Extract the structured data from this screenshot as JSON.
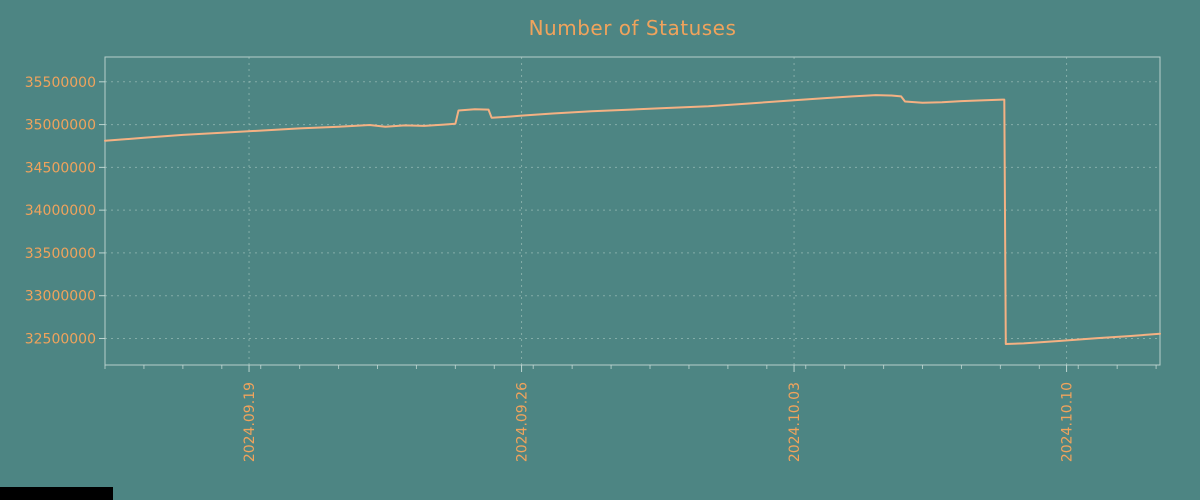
{
  "chart_data": {
    "type": "line",
    "title": "Number of Statuses",
    "xlabel": "",
    "ylabel": "",
    "grid": true,
    "legend": "none",
    "xlim": [
      0,
      27.1
    ],
    "ylim": [
      32190000,
      35790000
    ],
    "x_unit": "days (axis labeled by date ticks)",
    "x_ticks": [
      {
        "label": "2024.09.19",
        "pos": 3.7
      },
      {
        "label": "2024.09.26",
        "pos": 10.7
      },
      {
        "label": "2024.10.03",
        "pos": 17.7
      },
      {
        "label": "2024.10.10",
        "pos": 24.7
      }
    ],
    "y_ticks": [
      {
        "label": "32500000",
        "value": 32500000
      },
      {
        "label": "33000000",
        "value": 33000000
      },
      {
        "label": "33500000",
        "value": 33500000
      },
      {
        "label": "34000000",
        "value": 34000000
      },
      {
        "label": "34500000",
        "value": 34500000
      },
      {
        "label": "35000000",
        "value": 35000000
      },
      {
        "label": "35500000",
        "value": 35500000
      }
    ],
    "x_minor_tick_step": 1,
    "series": [
      {
        "name": "statuses",
        "points": [
          [
            0,
            34810000
          ],
          [
            1,
            34845000
          ],
          [
            2,
            34880000
          ],
          [
            3,
            34905000
          ],
          [
            4,
            34930000
          ],
          [
            5,
            34955000
          ],
          [
            6,
            34975000
          ],
          [
            6.8,
            34995000
          ],
          [
            7.2,
            34975000
          ],
          [
            7.7,
            34990000
          ],
          [
            8.2,
            34985000
          ],
          [
            8.7,
            35000000
          ],
          [
            9.0,
            35010000
          ],
          [
            9.08,
            35165000
          ],
          [
            9.5,
            35180000
          ],
          [
            9.85,
            35175000
          ],
          [
            9.93,
            35080000
          ],
          [
            10.3,
            35090000
          ],
          [
            10.7,
            35105000
          ],
          [
            11.5,
            35130000
          ],
          [
            12.5,
            35155000
          ],
          [
            13.5,
            35175000
          ],
          [
            14.5,
            35195000
          ],
          [
            15.5,
            35215000
          ],
          [
            16.5,
            35245000
          ],
          [
            17.7,
            35285000
          ],
          [
            18.5,
            35310000
          ],
          [
            19.2,
            35330000
          ],
          [
            19.8,
            35345000
          ],
          [
            20.2,
            35340000
          ],
          [
            20.45,
            35330000
          ],
          [
            20.55,
            35270000
          ],
          [
            21.0,
            35255000
          ],
          [
            21.5,
            35262000
          ],
          [
            22.0,
            35275000
          ],
          [
            22.6,
            35285000
          ],
          [
            23.05,
            35292000
          ],
          [
            23.1,
            35292000
          ],
          [
            23.14,
            32435000
          ],
          [
            23.6,
            32442000
          ],
          [
            24.5,
            32470000
          ],
          [
            25.5,
            32505000
          ],
          [
            26.3,
            32528000
          ],
          [
            27.1,
            32555000
          ]
        ]
      }
    ],
    "colors": {
      "background": "#4d8583",
      "line": "#f4b183",
      "text": "#f0a35c",
      "grid": "#aac8c2",
      "border": "#c9ddd8"
    }
  }
}
